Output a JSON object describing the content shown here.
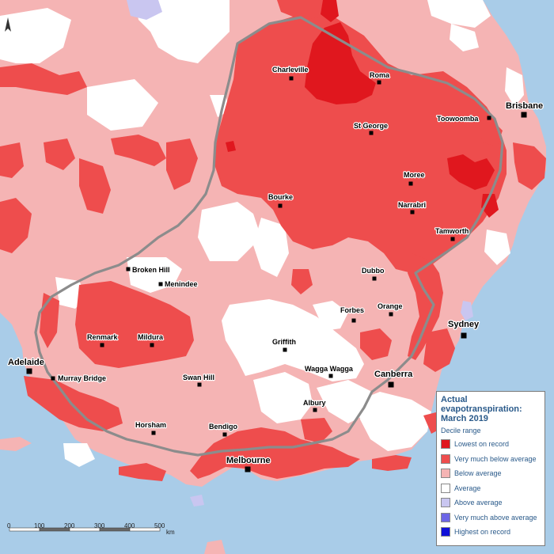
{
  "legend": {
    "title": "Actual evapotranspiration: March 2019",
    "subtitle": "Decile range",
    "items": [
      {
        "label": "Lowest on record",
        "color": "#e0171e"
      },
      {
        "label": "Very much below average",
        "color": "#ee4d4d"
      },
      {
        "label": "Below average",
        "color": "#f5b4b4"
      },
      {
        "label": "Average",
        "color": "#ffffff"
      },
      {
        "label": "Above average",
        "color": "#c9c6f0"
      },
      {
        "label": "Very much above average",
        "color": "#6d66e6"
      },
      {
        "label": "Highest on record",
        "color": "#1010d8"
      }
    ]
  },
  "cities": [
    {
      "name": "Charleville"
    },
    {
      "name": "Roma"
    },
    {
      "name": "Brisbane"
    },
    {
      "name": "Toowoomba"
    },
    {
      "name": "St George"
    },
    {
      "name": "Moree"
    },
    {
      "name": "Bourke"
    },
    {
      "name": "Narrabri"
    },
    {
      "name": "Tamworth"
    },
    {
      "name": "Broken Hill"
    },
    {
      "name": "Menindee"
    },
    {
      "name": "Dubbo"
    },
    {
      "name": "Forbes"
    },
    {
      "name": "Orange"
    },
    {
      "name": "Sydney"
    },
    {
      "name": "Renmark"
    },
    {
      "name": "Mildura"
    },
    {
      "name": "Griffith"
    },
    {
      "name": "Adelaide"
    },
    {
      "name": "Swan Hill"
    },
    {
      "name": "Wagga Wagga"
    },
    {
      "name": "Canberra"
    },
    {
      "name": "Murray Bridge"
    },
    {
      "name": "Albury"
    },
    {
      "name": "Horsham"
    },
    {
      "name": "Bendigo"
    },
    {
      "name": "Melbourne"
    }
  ],
  "scalebar": {
    "ticks": [
      "0",
      "100",
      "200",
      "300",
      "400",
      "500"
    ],
    "unit": "km"
  },
  "colors": {
    "sea": "#a9cce8",
    "lowest": "#e0171e",
    "very_much_below": "#ee4d4d",
    "below": "#f5b4b4",
    "average": "#ffffff",
    "above": "#c9c6f0"
  }
}
